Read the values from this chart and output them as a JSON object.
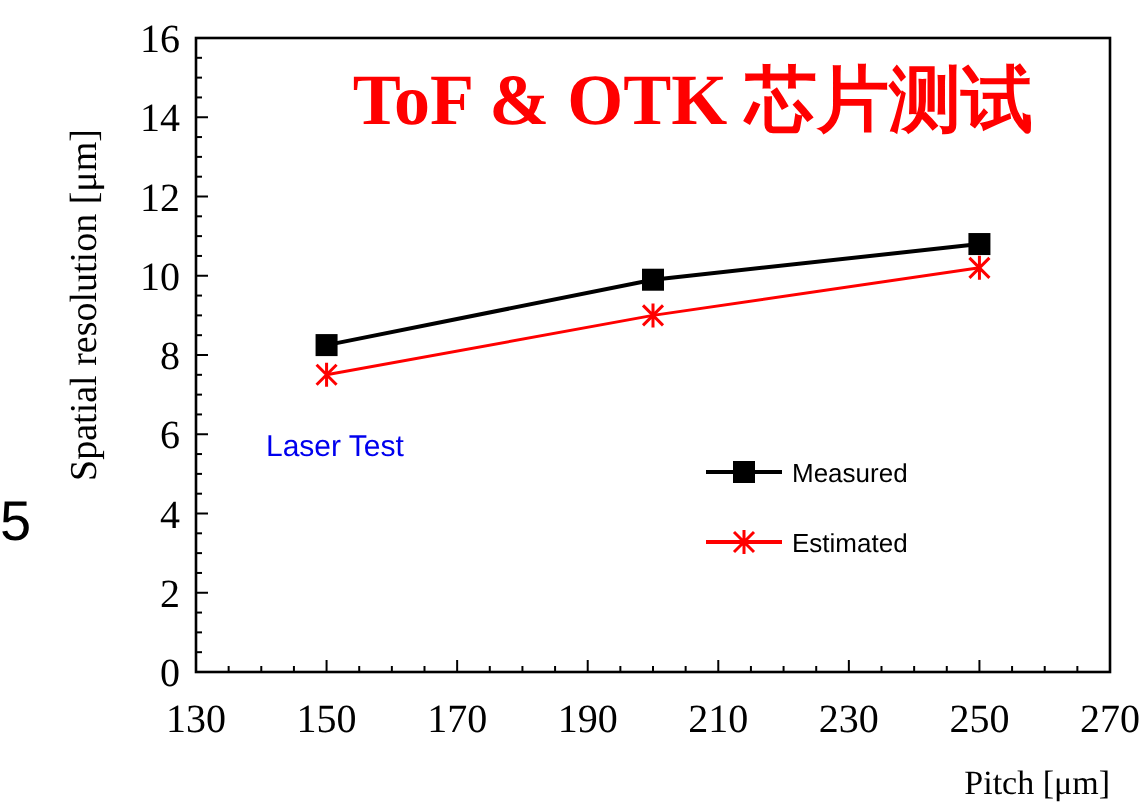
{
  "chart_data": {
    "type": "line",
    "title": "ToF & OTK 芯片测试",
    "xlabel": "Pitch [μm]",
    "ylabel": "Spatial resolution [μm]",
    "x": [
      150,
      200,
      250
    ],
    "series": [
      {
        "name": "Measured",
        "color": "#000000",
        "marker": "square",
        "values": [
          8.25,
          9.9,
          10.8
        ]
      },
      {
        "name": "Estimated",
        "color": "#ff0000",
        "marker": "cross",
        "values": [
          7.5,
          9.0,
          10.2
        ]
      }
    ],
    "xlim": [
      130,
      270
    ],
    "xticks": [
      130,
      150,
      170,
      190,
      210,
      230,
      250,
      270
    ],
    "ylim": [
      0,
      16
    ],
    "yticks": [
      0,
      2,
      4,
      6,
      8,
      10,
      12,
      14,
      16
    ],
    "grid": false,
    "legend": "right",
    "annotations": [
      "Laser Test",
      "5"
    ]
  }
}
